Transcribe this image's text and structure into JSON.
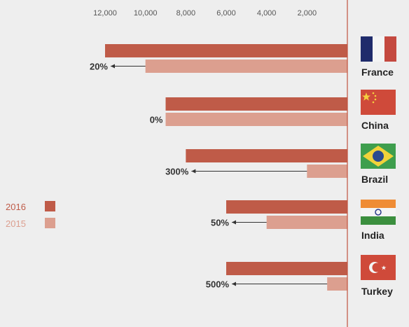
{
  "colors": {
    "y2016": "#bf5b48",
    "y2015": "#dc9f8f",
    "axis": "#c0533f",
    "arrow": "#333333",
    "background": "#eeeeee"
  },
  "chart_data": {
    "type": "bar",
    "orientation": "horizontal",
    "direction": "right-to-left",
    "title": "",
    "xlabel": "",
    "ylabel": "",
    "xlim": [
      0,
      13000
    ],
    "x_ticks": [
      12000,
      10000,
      8000,
      6000,
      4000,
      2000
    ],
    "x_tick_labels": [
      "12,000",
      "10,000",
      "8,000",
      "6,000",
      "4,000",
      "2,000"
    ],
    "grid": false,
    "legend_position": "left",
    "categories": [
      "France",
      "China",
      "Brazil",
      "India",
      "Turkey"
    ],
    "series": [
      {
        "name": "2016",
        "values": [
          12000,
          9000,
          8000,
          6000,
          6000
        ]
      },
      {
        "name": "2015",
        "values": [
          10000,
          9000,
          2000,
          4000,
          1000
        ]
      }
    ],
    "annotations": [
      "20%",
      "0%",
      "300%",
      "50%",
      "500%"
    ],
    "country_icons": [
      "france-flag",
      "china-flag",
      "brazil-flag",
      "india-flag",
      "turkey-flag"
    ]
  }
}
